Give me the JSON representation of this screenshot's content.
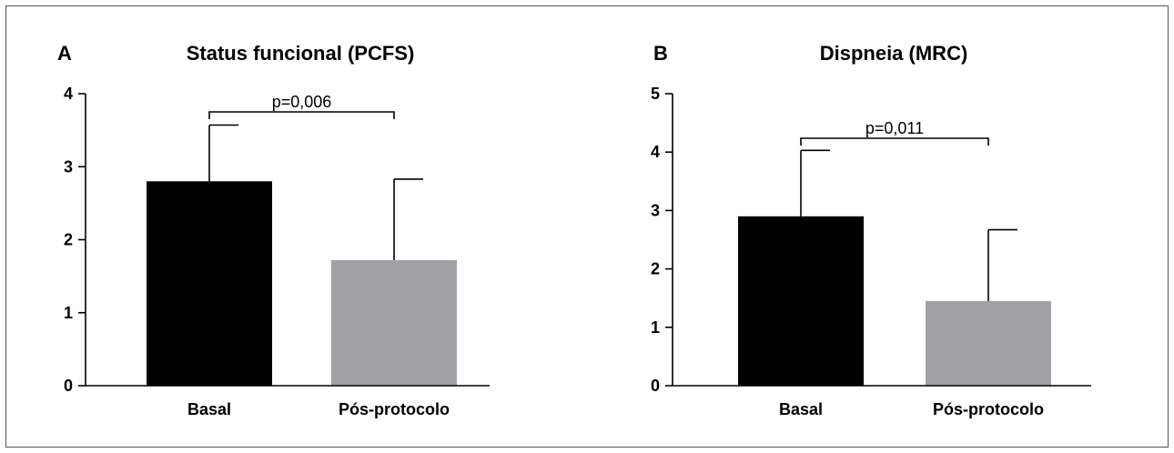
{
  "chart_data": [
    {
      "type": "bar",
      "panel": "A",
      "title": "Status funcional (PCFS)",
      "categories": [
        "Basal",
        "Pós-protocolo"
      ],
      "values": [
        2.8,
        1.72
      ],
      "error_upper": [
        3.57,
        2.83
      ],
      "colors": [
        "#000000",
        "#a2a1a6"
      ],
      "ylim": [
        0,
        4
      ],
      "yticks": [
        "0",
        "1",
        "2",
        "3",
        "4"
      ],
      "annotation": "p=0,006",
      "xlabel": "",
      "ylabel": ""
    },
    {
      "type": "bar",
      "panel": "B",
      "title": "Dispneia (MRC)",
      "categories": [
        "Basal",
        "Pós-protocolo"
      ],
      "values": [
        2.9,
        1.45
      ],
      "error_upper": [
        4.03,
        2.67
      ],
      "colors": [
        "#000000",
        "#a2a1a6"
      ],
      "ylim": [
        0,
        5
      ],
      "yticks": [
        "0",
        "1",
        "2",
        "3",
        "4",
        "5"
      ],
      "annotation": "p=0,011",
      "xlabel": "",
      "ylabel": ""
    }
  ]
}
